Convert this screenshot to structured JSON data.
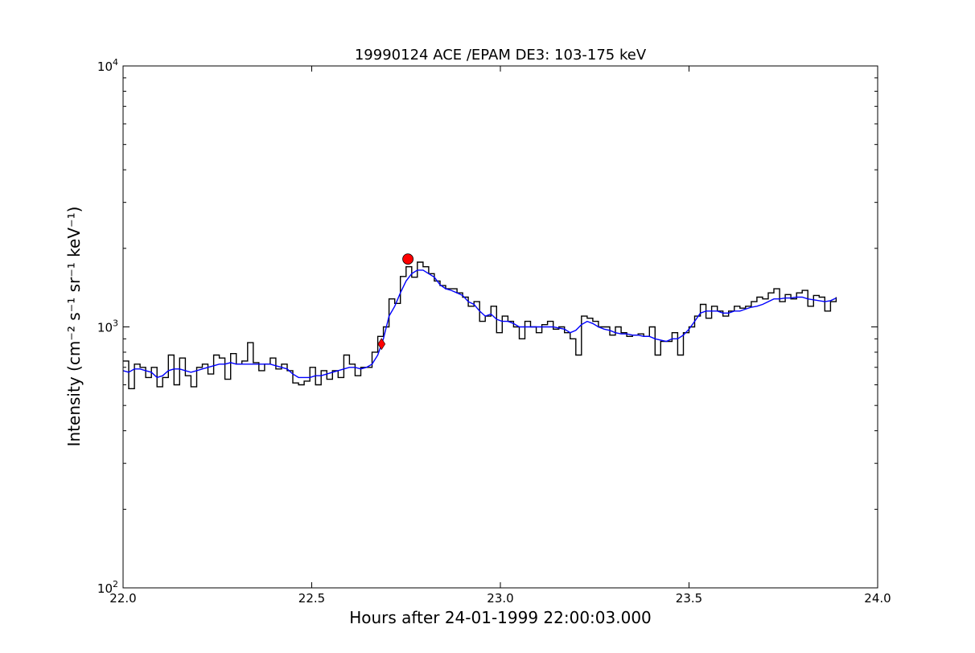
{
  "chart_data": {
    "type": "line",
    "title": "19990124 ACE /EPAM DE3: 103-175 keV",
    "xlabel": "Hours after 24-01-1999 22:00:03.000",
    "ylabel": "Intensity (cm⁻² s⁻¹ sr⁻¹ keV⁻¹)",
    "xlim": [
      22.0,
      24.0
    ],
    "ylim": [
      100,
      10000
    ],
    "yscale": "log",
    "grid": false,
    "x_ticks": [
      {
        "value": 22.0,
        "label": "22.0"
      },
      {
        "value": 22.5,
        "label": "22.5"
      },
      {
        "value": 23.0,
        "label": "23.0"
      },
      {
        "value": 23.5,
        "label": "23.5"
      },
      {
        "value": 24.0,
        "label": "24.0"
      }
    ],
    "y_ticks": [
      {
        "value": 100,
        "base": "10",
        "exp": "2"
      },
      {
        "value": 1000,
        "base": "10",
        "exp": "3"
      },
      {
        "value": 10000,
        "base": "10",
        "exp": "4"
      }
    ],
    "series": [
      {
        "color": "#000000",
        "style": "steps",
        "x": [
          22.0,
          22.015,
          22.03,
          22.045,
          22.06,
          22.075,
          22.09,
          22.105,
          22.12,
          22.135,
          22.15,
          22.165,
          22.18,
          22.195,
          22.21,
          22.225,
          22.24,
          22.255,
          22.27,
          22.285,
          22.3,
          22.315,
          22.33,
          22.345,
          22.36,
          22.375,
          22.39,
          22.405,
          22.42,
          22.435,
          22.45,
          22.465,
          22.48,
          22.495,
          22.51,
          22.525,
          22.54,
          22.555,
          22.57,
          22.585,
          22.6,
          22.615,
          22.63,
          22.645,
          22.66,
          22.675,
          22.69,
          22.705,
          22.72,
          22.735,
          22.75,
          22.765,
          22.78,
          22.795,
          22.81,
          22.825,
          22.84,
          22.855,
          22.87,
          22.885,
          22.9,
          22.915,
          22.93,
          22.945,
          22.96,
          22.975,
          22.99,
          23.005,
          23.02,
          23.035,
          23.05,
          23.065,
          23.08,
          23.095,
          23.11,
          23.125,
          23.14,
          23.155,
          23.17,
          23.185,
          23.2,
          23.215,
          23.23,
          23.245,
          23.26,
          23.275,
          23.29,
          23.305,
          23.32,
          23.335,
          23.35,
          23.365,
          23.38,
          23.395,
          23.41,
          23.425,
          23.44,
          23.455,
          23.47,
          23.485,
          23.5,
          23.515,
          23.53,
          23.545,
          23.56,
          23.575,
          23.59,
          23.605,
          23.62,
          23.635,
          23.65,
          23.665,
          23.68,
          23.695,
          23.71,
          23.725,
          23.74,
          23.755,
          23.77,
          23.785,
          23.8,
          23.815,
          23.83,
          23.845,
          23.86,
          23.875,
          23.89
        ],
        "values": [
          740,
          580,
          720,
          700,
          640,
          700,
          590,
          640,
          780,
          600,
          760,
          650,
          590,
          700,
          720,
          660,
          780,
          760,
          630,
          790,
          720,
          740,
          870,
          730,
          680,
          720,
          760,
          690,
          720,
          680,
          610,
          600,
          620,
          700,
          600,
          680,
          630,
          680,
          640,
          780,
          720,
          650,
          700,
          700,
          800,
          920,
          1000,
          1280,
          1230,
          1560,
          1700,
          1550,
          1770,
          1700,
          1600,
          1500,
          1440,
          1400,
          1400,
          1350,
          1300,
          1200,
          1250,
          1050,
          1100,
          1200,
          950,
          1100,
          1050,
          1000,
          900,
          1050,
          1000,
          950,
          1020,
          1050,
          980,
          1000,
          950,
          900,
          780,
          1100,
          1080,
          1050,
          1000,
          1000,
          930,
          1000,
          950,
          920,
          930,
          940,
          920,
          1000,
          780,
          880,
          880,
          950,
          780,
          950,
          1000,
          1100,
          1220,
          1080,
          1200,
          1150,
          1100,
          1150,
          1200,
          1180,
          1200,
          1250,
          1300,
          1280,
          1350,
          1400,
          1250,
          1330,
          1280,
          1350,
          1380,
          1200,
          1320,
          1300,
          1150,
          1250,
          1300
        ]
      },
      {
        "color": "#0000ff",
        "style": "line",
        "x": [
          22.0,
          22.015,
          22.03,
          22.045,
          22.06,
          22.075,
          22.09,
          22.105,
          22.12,
          22.135,
          22.15,
          22.165,
          22.18,
          22.195,
          22.21,
          22.225,
          22.24,
          22.255,
          22.27,
          22.285,
          22.3,
          22.315,
          22.33,
          22.345,
          22.36,
          22.375,
          22.39,
          22.405,
          22.42,
          22.435,
          22.45,
          22.465,
          22.48,
          22.495,
          22.51,
          22.525,
          22.54,
          22.555,
          22.57,
          22.585,
          22.6,
          22.615,
          22.63,
          22.645,
          22.66,
          22.675,
          22.69,
          22.705,
          22.72,
          22.735,
          22.75,
          22.765,
          22.78,
          22.795,
          22.81,
          22.825,
          22.84,
          22.855,
          22.87,
          22.885,
          22.9,
          22.915,
          22.93,
          22.945,
          22.96,
          22.975,
          22.99,
          23.005,
          23.02,
          23.035,
          23.05,
          23.065,
          23.08,
          23.095,
          23.11,
          23.125,
          23.14,
          23.155,
          23.17,
          23.185,
          23.2,
          23.215,
          23.23,
          23.245,
          23.26,
          23.275,
          23.29,
          23.305,
          23.32,
          23.335,
          23.35,
          23.365,
          23.38,
          23.395,
          23.41,
          23.425,
          23.44,
          23.455,
          23.47,
          23.485,
          23.5,
          23.515,
          23.53,
          23.545,
          23.56,
          23.575,
          23.59,
          23.605,
          23.62,
          23.635,
          23.65,
          23.665,
          23.68,
          23.695,
          23.71,
          23.725,
          23.74,
          23.755,
          23.77,
          23.785,
          23.8,
          23.815,
          23.83,
          23.845,
          23.86,
          23.875,
          23.89
        ],
        "values": [
          680,
          670,
          690,
          690,
          680,
          670,
          640,
          650,
          680,
          690,
          690,
          680,
          670,
          680,
          690,
          700,
          710,
          720,
          720,
          730,
          720,
          720,
          720,
          720,
          720,
          720,
          720,
          710,
          700,
          690,
          660,
          640,
          640,
          640,
          650,
          650,
          660,
          670,
          680,
          690,
          700,
          700,
          690,
          700,
          720,
          780,
          900,
          1100,
          1200,
          1350,
          1500,
          1600,
          1650,
          1650,
          1600,
          1550,
          1450,
          1400,
          1380,
          1350,
          1320,
          1250,
          1220,
          1150,
          1100,
          1120,
          1070,
          1050,
          1050,
          1030,
          1000,
          1000,
          1000,
          1000,
          1000,
          1000,
          1000,
          990,
          980,
          950,
          970,
          1020,
          1050,
          1030,
          1000,
          980,
          970,
          950,
          940,
          940,
          930,
          930,
          920,
          920,
          900,
          890,
          880,
          900,
          900,
          930,
          980,
          1050,
          1130,
          1150,
          1150,
          1150,
          1130,
          1130,
          1150,
          1150,
          1170,
          1190,
          1200,
          1220,
          1250,
          1280,
          1280,
          1290,
          1290,
          1300,
          1300,
          1280,
          1270,
          1260,
          1250,
          1260,
          1290
        ]
      }
    ],
    "markers": [
      {
        "shape": "diamond",
        "x": 22.685,
        "y": 860,
        "color": "#ff0000"
      },
      {
        "shape": "circle",
        "x": 22.755,
        "y": 1820,
        "color": "#ff0000"
      }
    ]
  }
}
